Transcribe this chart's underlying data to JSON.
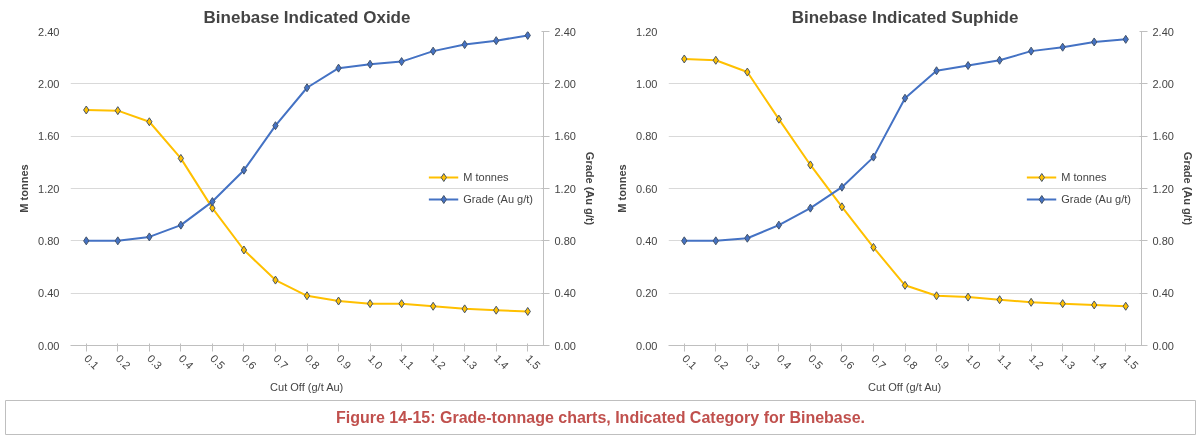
{
  "chart_data": [
    {
      "type": "line",
      "title": "Binebase Indicated Oxide",
      "xlabel": "Cut Off (g/t Au)",
      "ylabel": "M tonnes",
      "y2label": "Grade (Au g/t)",
      "categories": [
        "0.1",
        "0.2",
        "0.3",
        "0.4",
        "0.5",
        "0.6",
        "0.7",
        "0.8",
        "0.9",
        "1.0",
        "1.1",
        "1.2",
        "1.3",
        "1.4",
        "1.5"
      ],
      "series": [
        {
          "name": "M tonnes",
          "color": "#ffc000",
          "values": [
            1.8,
            1.795,
            1.71,
            1.43,
            1.05,
            0.73,
            0.5,
            0.38,
            0.34,
            0.32,
            0.32,
            0.3,
            0.28,
            0.27,
            0.26
          ]
        },
        {
          "name": "Grade (Au g/t)",
          "color": "#4472c4",
          "axis": "y2",
          "values": [
            0.8,
            0.8,
            0.83,
            0.92,
            1.1,
            1.34,
            1.68,
            1.97,
            2.12,
            2.15,
            2.17,
            2.25,
            2.3,
            2.33,
            2.37
          ]
        }
      ],
      "ylim": [
        0,
        2.4
      ],
      "yticks": [
        {
          "value": 0,
          "label": "0.00"
        },
        {
          "value": 0.4,
          "label": "0.40"
        },
        {
          "value": 0.8,
          "label": "0.80"
        },
        {
          "value": 1.2,
          "label": "1.20"
        },
        {
          "value": 1.6,
          "label": "1.60"
        },
        {
          "value": 2.0,
          "label": "2.00"
        },
        {
          "value": 2.4,
          "label": "2.40"
        }
      ],
      "y2lim": [
        0,
        2.4
      ],
      "y2ticks": [
        {
          "value": 0,
          "label": "0.00"
        },
        {
          "value": 0.4,
          "label": "0.40"
        },
        {
          "value": 0.8,
          "label": "0.80"
        },
        {
          "value": 1.2,
          "label": "1.20"
        },
        {
          "value": 1.6,
          "label": "1.60"
        },
        {
          "value": 2.0,
          "label": "2.00"
        },
        {
          "value": 2.4,
          "label": "2.40"
        }
      ],
      "grid": "y",
      "legend": "right",
      "marker": "diamond",
      "line_style": "solid",
      "annotations": [
        "Figure 14-15: Grade-tonnage charts, Indicated Category for Binebase."
      ]
    },
    {
      "type": "line",
      "title": "Binebase Indicated Suphide",
      "xlabel": "Cut Off (g/t Au)",
      "ylabel": "M tonnes",
      "y2label": "Grade (Au g/t)",
      "categories": [
        "0.1",
        "0.2",
        "0.3",
        "0.4",
        "0.5",
        "0.6",
        "0.7",
        "0.8",
        "0.9",
        "1.0",
        "1.1",
        "1.2",
        "1.3",
        "1.4",
        "1.5"
      ],
      "series": [
        {
          "name": "M tonnes",
          "color": "#ffc000",
          "values": [
            1.095,
            1.09,
            1.045,
            0.865,
            0.69,
            0.53,
            0.375,
            0.23,
            0.19,
            0.185,
            0.175,
            0.165,
            0.16,
            0.155,
            0.15
          ]
        },
        {
          "name": "Grade (Au g/t)",
          "color": "#4472c4",
          "axis": "y2",
          "values": [
            0.8,
            0.8,
            0.82,
            0.92,
            1.05,
            1.21,
            1.44,
            1.89,
            2.1,
            2.14,
            2.18,
            2.25,
            2.28,
            2.32,
            2.34
          ]
        }
      ],
      "ylim": [
        0,
        1.2
      ],
      "yticks": [
        {
          "value": 0,
          "label": "0.00"
        },
        {
          "value": 0.2,
          "label": "0.20"
        },
        {
          "value": 0.4,
          "label": "0.40"
        },
        {
          "value": 0.6,
          "label": "0.60"
        },
        {
          "value": 0.8,
          "label": "0.80"
        },
        {
          "value": 1.0,
          "label": "1.00"
        },
        {
          "value": 1.2,
          "label": "1.20"
        }
      ],
      "y2lim": [
        0,
        2.4
      ],
      "y2ticks": [
        {
          "value": 0,
          "label": "0.00"
        },
        {
          "value": 0.4,
          "label": "0.40"
        },
        {
          "value": 0.8,
          "label": "0.80"
        },
        {
          "value": 1.2,
          "label": "1.20"
        },
        {
          "value": 1.6,
          "label": "1.60"
        },
        {
          "value": 2.0,
          "label": "2.00"
        },
        {
          "value": 2.4,
          "label": "2.40"
        }
      ],
      "grid": "y",
      "legend": "right",
      "marker": "diamond",
      "line_style": "solid"
    }
  ]
}
